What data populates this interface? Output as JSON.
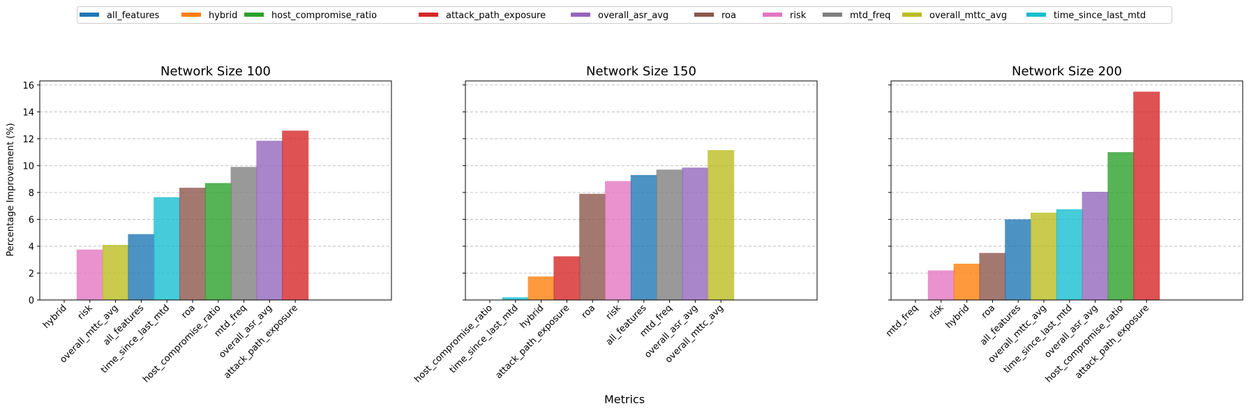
{
  "chart_data": {
    "type": "bar",
    "xlabel": "Metrics",
    "ylabel": "Percentage Improvement (%)",
    "ylim": [
      0,
      16.3
    ],
    "yticks": [
      0,
      2,
      4,
      6,
      8,
      10,
      12,
      14,
      16
    ],
    "grid": "y-dashed",
    "legend_position": "top-center",
    "legend": [
      {
        "name": "all_features",
        "color": "#1f77b4"
      },
      {
        "name": "hybrid",
        "color": "#ff7f0e"
      },
      {
        "name": "host_compromise_ratio",
        "color": "#2ca02c"
      },
      {
        "name": "attack_path_exposure",
        "color": "#d62728"
      },
      {
        "name": "overall_asr_avg",
        "color": "#9467bd"
      },
      {
        "name": "roa",
        "color": "#8c564b"
      },
      {
        "name": "risk",
        "color": "#e377c2"
      },
      {
        "name": "mtd_freq",
        "color": "#7f7f7f"
      },
      {
        "name": "overall_mttc_avg",
        "color": "#bcbd22"
      },
      {
        "name": "time_since_last_mtd",
        "color": "#17becf"
      }
    ],
    "panels": [
      {
        "title": "Network Size 100",
        "categories": [
          "hybrid",
          "risk",
          "overall_mttc_avg",
          "all_features",
          "time_since_last_mtd",
          "roa",
          "host_compromise_ratio",
          "mtd_freq",
          "overall_asr_avg",
          "attack_path_exposure"
        ],
        "values": [
          0,
          3.75,
          4.1,
          4.9,
          7.65,
          8.35,
          8.7,
          9.9,
          11.85,
          12.6
        ]
      },
      {
        "title": "Network Size 150",
        "categories": [
          "host_compromise_ratio",
          "time_since_last_mtd",
          "hybrid",
          "attack_path_exposure",
          "roa",
          "risk",
          "all_features",
          "mtd_freq",
          "overall_asr_avg",
          "overall_mttc_avg"
        ],
        "values": [
          0,
          0.2,
          1.75,
          3.25,
          7.9,
          8.85,
          9.3,
          9.7,
          9.85,
          11.15
        ]
      },
      {
        "title": "Network Size 200",
        "categories": [
          "mtd_freq",
          "risk",
          "hybrid",
          "roa",
          "all_features",
          "overall_mttc_avg",
          "time_since_last_mtd",
          "overall_asr_avg",
          "host_compromise_ratio",
          "attack_path_exposure"
        ],
        "values": [
          0,
          2.2,
          2.7,
          3.5,
          6.0,
          6.5,
          6.75,
          8.05,
          11.0,
          15.5
        ]
      }
    ]
  }
}
